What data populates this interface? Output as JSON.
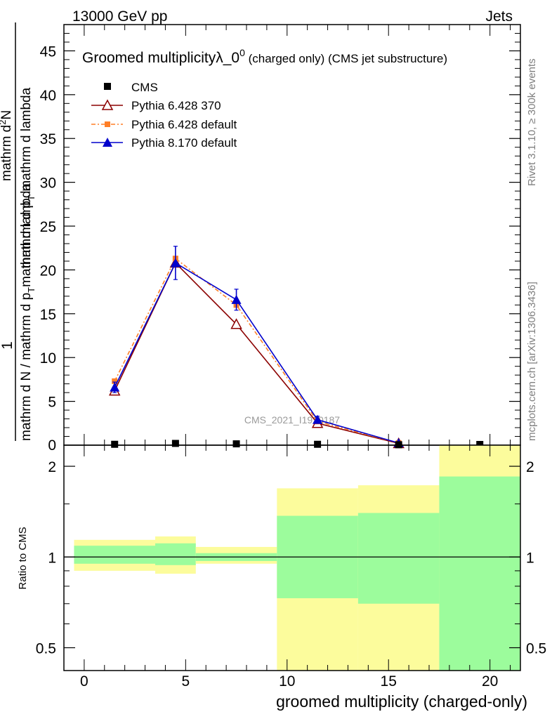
{
  "header": {
    "left": "13000 GeV pp",
    "right": "Jets"
  },
  "side_labels": {
    "rivet": "Rivet 3.1.10, ≥ 300k events",
    "mcplots": "mcplots.cern.ch [arXiv:1306.3436]"
  },
  "watermark": "CMS_2021_I1920187",
  "legend": {
    "cms": "CMS",
    "p6_370": "Pythia 6.428 370",
    "p6_def": "Pythia 6.428 default",
    "p8_def": "Pythia 8.170 default"
  },
  "colors": {
    "cms": "#000000",
    "p6_370": "#8b0000",
    "p6_def": "#ff7f27",
    "p8_def": "#0000cc",
    "band_inner": "#9cfc9c",
    "band_outer": "#fcfc9c"
  },
  "chart_data": {
    "type": "line",
    "title": "Groomed multiplicityλ_0",
    "title_sup": "0",
    "title_suffix": " (charged only) (CMS jet substructure)",
    "ylabel_frac_top": "1",
    "ylabel_den_top": "mathrm d N / mathrm d p",
    "ylabel_den_top_sub": "T",
    "ylabel_den_top_tail": "mathrm d lambda",
    "ylabel_frac_right_top": "mathrm d",
    "ylabel_frac_right_top_sup": "2",
    "ylabel_frac_right_top_tail": "N",
    "ylabel_frac_right_bot": "mathrm d p",
    "ylabel_frac_right_bot_sub": "T",
    "ylabel_frac_right_bot_tail": " mathrm d lambda",
    "ratio_ylabel": "Ratio to CMS",
    "xlabel": "groomed multiplicity (charged-only)",
    "xlim": [
      -1,
      21.5
    ],
    "ylim": [
      0,
      48
    ],
    "x_ticks": [
      0,
      5,
      10,
      15,
      20
    ],
    "x_tick_labels": [
      "0",
      "5",
      "10",
      "15",
      "20"
    ],
    "y_ticks": [
      5,
      10,
      15,
      20,
      25,
      30,
      35,
      40,
      45
    ],
    "y_tick_labels": [
      "5",
      "10",
      "15",
      "20",
      "25",
      "30",
      "35",
      "40",
      "45"
    ],
    "y_tick0_label": "0",
    "ratio_ylim": [
      0.42,
      2.35
    ],
    "ratio_ticks": [
      0.5,
      1,
      2
    ],
    "ratio_tick_labels": [
      "0.5",
      "1",
      "2"
    ],
    "cms_points": {
      "x": [
        1.5,
        4.5,
        7.5,
        11.5,
        15.5,
        19.5
      ],
      "y": [
        0.1,
        0.2,
        0.15,
        0.1,
        0.05,
        0.08
      ]
    },
    "bins": [
      {
        "lo": -0.5,
        "hi": 3.5,
        "inner": [
          0.95,
          1.09
        ],
        "outer": [
          0.9,
          1.14
        ]
      },
      {
        "lo": 3.5,
        "hi": 5.5,
        "inner": [
          0.94,
          1.11
        ],
        "outer": [
          0.88,
          1.17
        ]
      },
      {
        "lo": 5.5,
        "hi": 9.5,
        "inner": [
          0.97,
          1.03
        ],
        "outer": [
          0.95,
          1.08
        ]
      },
      {
        "lo": 9.5,
        "hi": 13.5,
        "inner": [
          0.73,
          1.37
        ],
        "outer": [
          0.42,
          1.69
        ]
      },
      {
        "lo": 13.5,
        "hi": 17.5,
        "inner": [
          0.7,
          1.4
        ],
        "outer": [
          0.42,
          1.73
        ]
      },
      {
        "lo": 17.5,
        "hi": 21.5,
        "inner": [
          0.42,
          1.85
        ],
        "outer": [
          0.42,
          2.35
        ]
      }
    ],
    "series": [
      {
        "key": "p6_370",
        "name": "Pythia 6.428 370",
        "x": [
          1.5,
          4.5,
          7.5,
          11.5,
          15.5
        ],
        "y": [
          6.2,
          20.8,
          13.8,
          2.5,
          0.2
        ]
      },
      {
        "key": "p6_def",
        "name": "Pythia 6.428 default",
        "x": [
          1.5,
          4.5,
          7.5,
          11.5,
          15.5
        ],
        "y": [
          7.3,
          21.3,
          16.0,
          2.7,
          0.25
        ]
      },
      {
        "key": "p8_def",
        "name": "Pythia 8.170 default",
        "x": [
          1.5,
          4.5,
          7.5,
          11.5,
          15.5
        ],
        "y": [
          6.6,
          20.8,
          16.6,
          2.9,
          0.25
        ],
        "err": [
          0.6,
          1.9,
          1.2,
          0.4,
          0.1
        ]
      }
    ]
  }
}
